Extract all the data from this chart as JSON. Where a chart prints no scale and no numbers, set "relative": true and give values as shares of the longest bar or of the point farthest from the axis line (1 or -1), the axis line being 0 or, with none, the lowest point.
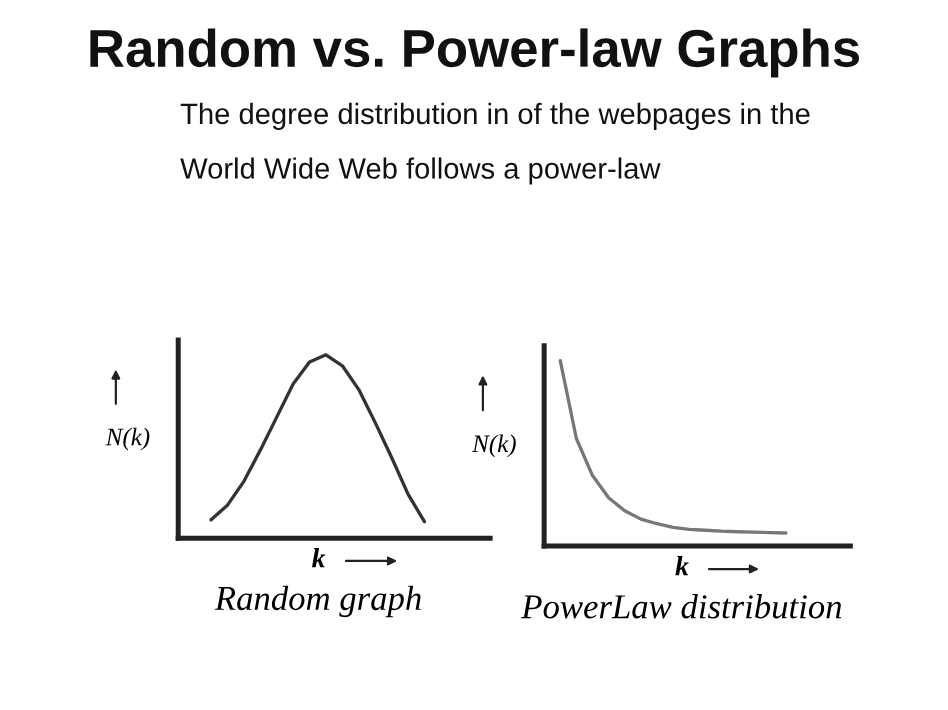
{
  "chart_data": [
    {
      "type": "line",
      "relative": true,
      "title": "Random vs. Power-law Graphs",
      "subtitle": "The degree distribution in of the webpages in the\nWorld Wide Web follows a power-law",
      "xlabel": "k",
      "ylabel": "N(k)",
      "annotations": [
        "Random graph"
      ],
      "categories": [
        null,
        null,
        null,
        null,
        null,
        null,
        null,
        null,
        null,
        null,
        null,
        null,
        null,
        null,
        null,
        null,
        null,
        null,
        null,
        null
      ],
      "series": [
        {
          "color": "#333333",
          "values": [
            null,
            null,
            0.1,
            0.18,
            0.31,
            0.48,
            0.66,
            0.84,
            0.96,
            1,
            0.94,
            0.81,
            0.63,
            0.44,
            0.24,
            0.09,
            null,
            null,
            null,
            null
          ]
        }
      ]
    },
    {
      "type": "line",
      "relative": true,
      "xlabel": "k",
      "ylabel": "N(k)",
      "annotations": [
        "PowerLaw distribution"
      ],
      "categories": [
        null,
        null,
        null,
        null,
        null,
        null,
        null,
        null,
        null,
        null,
        null,
        null,
        null,
        null,
        null,
        null,
        null,
        null,
        null,
        null
      ],
      "series": [
        {
          "color": "#777777",
          "values": [
            null,
            1,
            0.58,
            0.38,
            0.26,
            0.19,
            0.145,
            0.12,
            0.1,
            0.09,
            0.085,
            0.08,
            0.077,
            0.075,
            0.072,
            0.07,
            null,
            null,
            null,
            null
          ]
        }
      ]
    }
  ]
}
